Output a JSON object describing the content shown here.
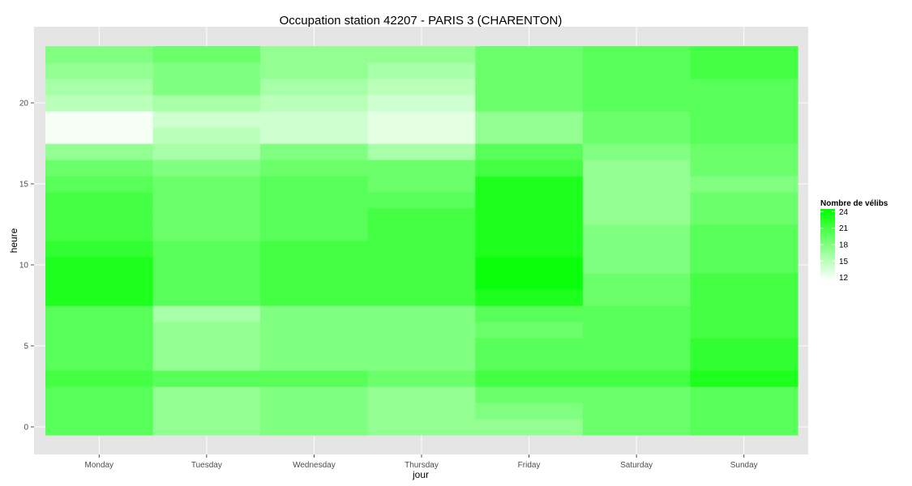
{
  "chart_data": {
    "type": "heatmap",
    "title": "Occupation station 42207 - PARIS 3 (CHARENTON)",
    "xlabel": "jour",
    "ylabel": "heure",
    "categories": [
      "Monday",
      "Tuesday",
      "Wednesday",
      "Thursday",
      "Friday",
      "Saturday",
      "Sunday"
    ],
    "hours": [
      0,
      1,
      2,
      3,
      4,
      5,
      6,
      7,
      8,
      9,
      10,
      11,
      12,
      13,
      14,
      15,
      16,
      17,
      18,
      19,
      20,
      21,
      22,
      23
    ],
    "ylim": [
      -0.5,
      23.5
    ],
    "y_ticks": [
      0,
      5,
      10,
      15,
      20
    ],
    "grid": true,
    "legend": {
      "title": "Nombre de vélibs",
      "placement": "right",
      "breaks": [
        24,
        21,
        18,
        15,
        12
      ],
      "min": 11.5,
      "max": 24.5,
      "low_color": "#ffffff",
      "high_color": "#00ff00"
    },
    "values": {
      "Monday": [
        20,
        20,
        20,
        21,
        20,
        20,
        20,
        20,
        23,
        23,
        23,
        22,
        21,
        21,
        21,
        20,
        19,
        17,
        12,
        12,
        15,
        16,
        17,
        18
      ],
      "Tuesday": [
        17,
        17,
        17,
        20,
        17,
        17,
        17,
        16,
        20,
        20,
        20,
        20,
        19,
        19,
        19,
        19,
        18,
        16,
        15,
        14,
        16,
        18,
        18,
        19
      ],
      "Wednesday": [
        18,
        18,
        18,
        20,
        18,
        18,
        18,
        18,
        21,
        21,
        21,
        21,
        20,
        20,
        20,
        20,
        19,
        18,
        14,
        14,
        15,
        16,
        17,
        17
      ],
      "Thursday": [
        17,
        17,
        17,
        19,
        18,
        18,
        18,
        18,
        21,
        21,
        21,
        21,
        21,
        21,
        20,
        19,
        19,
        16,
        13,
        13,
        14,
        15,
        16,
        17
      ],
      "Friday": [
        17,
        18,
        19,
        21,
        20,
        20,
        19,
        20,
        23,
        24,
        24,
        23,
        23,
        23,
        23,
        23,
        21,
        20,
        17,
        17,
        19,
        19,
        19,
        19
      ],
      "Saturday": [
        19,
        19,
        19,
        21,
        20,
        20,
        20,
        20,
        19,
        19,
        18,
        18,
        18,
        17,
        17,
        17,
        17,
        18,
        19,
        19,
        20,
        20,
        20,
        20
      ],
      "Sunday": [
        20,
        20,
        20,
        23,
        22,
        22,
        21,
        21,
        21,
        21,
        20,
        20,
        20,
        19,
        19,
        18,
        19,
        19,
        20,
        20,
        20,
        20,
        21,
        21
      ]
    }
  }
}
